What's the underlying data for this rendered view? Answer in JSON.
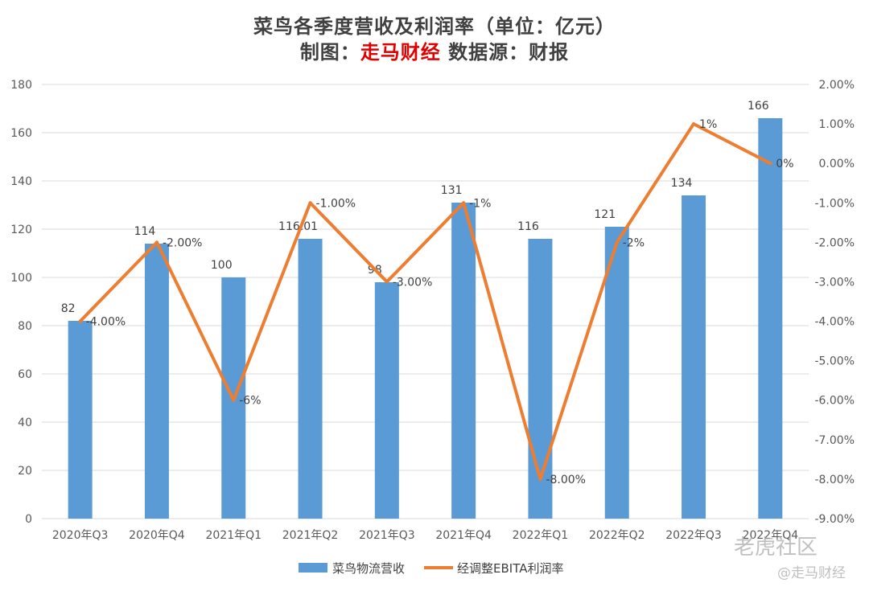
{
  "title_line1": "菜鸟各季度营收及利润率（单位：亿元）",
  "title_line2_prefix": "制图：",
  "title_line2_red": "走马财经",
  "title_line2_suffix": " 数据源：财报",
  "watermark_1": "老虎社区",
  "watermark_2": "@走马财经",
  "colors": {
    "bar": "#5b9bd5",
    "line": "#ed7d31",
    "grid": "#d9d9d9",
    "red": "#e00000"
  },
  "chart_data": {
    "type": "bar+line",
    "categories": [
      "2020年Q3",
      "2020年Q4",
      "2021年Q1",
      "2021年Q2",
      "2021年Q3",
      "2021年Q4",
      "2022年Q1",
      "2022年Q2",
      "2022年Q3",
      "2022年Q4"
    ],
    "series": [
      {
        "name": "菜鸟物流营收",
        "type": "bar",
        "axis": "left",
        "values": [
          82,
          114,
          100,
          116.01,
          98,
          131,
          116,
          121,
          134,
          166
        ],
        "labels": [
          "82",
          "114",
          "100",
          "116.01",
          "98",
          "131",
          "116",
          "121",
          "134",
          "166"
        ]
      },
      {
        "name": "经调整EBITA利润率",
        "type": "line",
        "axis": "right",
        "values": [
          -4,
          -2,
          -6,
          -1,
          -3,
          -1,
          -8,
          -2,
          1,
          0
        ],
        "labels": [
          "-4.00%",
          "-2.00%",
          "-6%",
          "-1.00%",
          "-3.00%",
          "-1%",
          "-8.00%",
          "-2%",
          "1%",
          "0%"
        ]
      }
    ],
    "y_left": {
      "min": 0,
      "max": 180,
      "step": 20,
      "ticks": [
        "0",
        "20",
        "40",
        "60",
        "80",
        "100",
        "120",
        "140",
        "160",
        "180"
      ]
    },
    "y_right": {
      "min": -9,
      "max": 2,
      "step": 1,
      "ticks": [
        "-9.00%",
        "-8.00%",
        "-7.00%",
        "-6.00%",
        "-5.00%",
        "-4.00%",
        "-3.00%",
        "-2.00%",
        "-1.00%",
        "0.00%",
        "1.00%",
        "2.00%"
      ]
    },
    "grid": true,
    "legend_position": "bottom"
  }
}
